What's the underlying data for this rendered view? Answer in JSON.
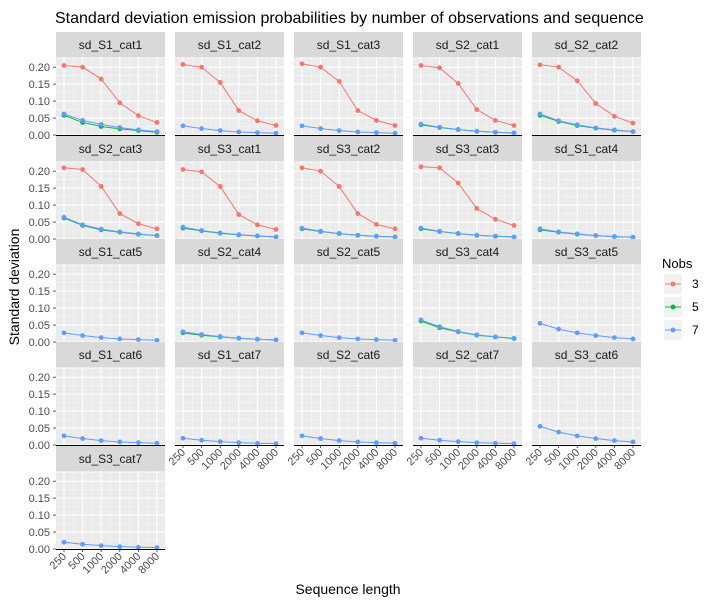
{
  "chart_data": {
    "type": "line",
    "title": "Standard deviation emission probabilities by number of observations and sequence",
    "xlabel": "Sequence length",
    "ylabel": "Standard deviation",
    "x": [
      250,
      500,
      1000,
      2000,
      4000,
      8000
    ],
    "x_tick_labels": [
      "250",
      "500",
      "1000",
      "2000",
      "4000",
      "8000"
    ],
    "x_scale": "log",
    "ylim": [
      0,
      0.23
    ],
    "y_ticks": [
      0.0,
      0.05,
      0.1,
      0.15,
      0.2
    ],
    "y_tick_labels": [
      "0.00",
      "0.05",
      "0.10",
      "0.15",
      "0.20"
    ],
    "grid": true,
    "legend": {
      "title": "Nobs",
      "position": "right",
      "entries": [
        "3",
        "5",
        "7"
      ]
    },
    "series_colors": {
      "3": "#F8766D",
      "5": "#00BA38",
      "7": "#619CFF"
    },
    "facets": [
      {
        "label": "sd_S1_cat1",
        "series": [
          {
            "name": "3",
            "values": [
              0.205,
              0.2,
              0.165,
              0.095,
              0.057,
              0.037
            ]
          },
          {
            "name": "5",
            "values": [
              0.058,
              0.037,
              0.025,
              0.018,
              0.013,
              0.008
            ]
          },
          {
            "name": "7",
            "values": [
              0.062,
              0.043,
              0.031,
              0.022,
              0.015,
              0.01
            ]
          }
        ]
      },
      {
        "label": "sd_S1_cat2",
        "series": [
          {
            "name": "3",
            "values": [
              0.208,
              0.2,
              0.155,
              0.072,
              0.042,
              0.028
            ]
          },
          {
            "name": "7",
            "values": [
              0.027,
              0.019,
              0.013,
              0.009,
              0.007,
              0.005
            ]
          }
        ]
      },
      {
        "label": "sd_S1_cat3",
        "series": [
          {
            "name": "3",
            "values": [
              0.21,
              0.2,
              0.158,
              0.072,
              0.043,
              0.028
            ]
          },
          {
            "name": "7",
            "values": [
              0.027,
              0.019,
              0.013,
              0.009,
              0.007,
              0.005
            ]
          }
        ]
      },
      {
        "label": "sd_S2_cat1",
        "series": [
          {
            "name": "3",
            "values": [
              0.205,
              0.198,
              0.152,
              0.075,
              0.043,
              0.028
            ]
          },
          {
            "name": "5",
            "values": [
              0.03,
              0.022,
              0.016,
              0.011,
              0.008,
              0.006
            ]
          },
          {
            "name": "7",
            "values": [
              0.032,
              0.023,
              0.016,
              0.011,
              0.008,
              0.006
            ]
          }
        ]
      },
      {
        "label": "sd_S2_cat2",
        "series": [
          {
            "name": "3",
            "values": [
              0.207,
              0.2,
              0.16,
              0.093,
              0.055,
              0.035
            ]
          },
          {
            "name": "5",
            "values": [
              0.058,
              0.04,
              0.028,
              0.02,
              0.014,
              0.01
            ]
          },
          {
            "name": "7",
            "values": [
              0.062,
              0.042,
              0.03,
              0.021,
              0.015,
              0.01
            ]
          }
        ]
      },
      {
        "label": "sd_S2_cat3",
        "series": [
          {
            "name": "3",
            "values": [
              0.21,
              0.205,
              0.155,
              0.075,
              0.045,
              0.03
            ]
          },
          {
            "name": "5",
            "values": [
              0.062,
              0.04,
              0.027,
              0.02,
              0.014,
              0.01
            ]
          },
          {
            "name": "7",
            "values": [
              0.064,
              0.042,
              0.029,
              0.021,
              0.015,
              0.01
            ]
          }
        ]
      },
      {
        "label": "sd_S3_cat1",
        "series": [
          {
            "name": "3",
            "values": [
              0.205,
              0.198,
              0.155,
              0.072,
              0.042,
              0.028
            ]
          },
          {
            "name": "5",
            "values": [
              0.032,
              0.024,
              0.017,
              0.012,
              0.009,
              0.006
            ]
          },
          {
            "name": "7",
            "values": [
              0.035,
              0.025,
              0.018,
              0.013,
              0.009,
              0.006
            ]
          }
        ]
      },
      {
        "label": "sd_S3_cat2",
        "series": [
          {
            "name": "3",
            "values": [
              0.21,
              0.2,
              0.155,
              0.075,
              0.043,
              0.03
            ]
          },
          {
            "name": "5",
            "values": [
              0.03,
              0.022,
              0.016,
              0.011,
              0.008,
              0.006
            ]
          },
          {
            "name": "7",
            "values": [
              0.032,
              0.023,
              0.016,
              0.011,
              0.008,
              0.006
            ]
          }
        ]
      },
      {
        "label": "sd_S3_cat3",
        "series": [
          {
            "name": "3",
            "values": [
              0.213,
              0.21,
              0.165,
              0.09,
              0.058,
              0.04
            ]
          },
          {
            "name": "5",
            "values": [
              0.03,
              0.022,
              0.016,
              0.011,
              0.008,
              0.006
            ]
          },
          {
            "name": "7",
            "values": [
              0.032,
              0.023,
              0.016,
              0.011,
              0.008,
              0.006
            ]
          }
        ]
      },
      {
        "label": "sd_S1_cat4",
        "series": [
          {
            "name": "5",
            "values": [
              0.027,
              0.02,
              0.014,
              0.01,
              0.007,
              0.005
            ]
          },
          {
            "name": "7",
            "values": [
              0.03,
              0.021,
              0.015,
              0.01,
              0.007,
              0.005
            ]
          }
        ]
      },
      {
        "label": "sd_S1_cat5",
        "series": [
          {
            "name": "7",
            "values": [
              0.027,
              0.019,
              0.013,
              0.009,
              0.007,
              0.005
            ]
          }
        ]
      },
      {
        "label": "sd_S2_cat4",
        "series": [
          {
            "name": "5",
            "values": [
              0.027,
              0.02,
              0.015,
              0.011,
              0.008,
              0.006
            ]
          },
          {
            "name": "7",
            "values": [
              0.03,
              0.022,
              0.016,
              0.011,
              0.008,
              0.006
            ]
          }
        ]
      },
      {
        "label": "sd_S2_cat5",
        "series": [
          {
            "name": "7",
            "values": [
              0.027,
              0.019,
              0.013,
              0.009,
              0.007,
              0.005
            ]
          }
        ]
      },
      {
        "label": "sd_S3_cat4",
        "series": [
          {
            "name": "5",
            "values": [
              0.062,
              0.042,
              0.03,
              0.02,
              0.015,
              0.01
            ]
          },
          {
            "name": "7",
            "values": [
              0.065,
              0.045,
              0.031,
              0.021,
              0.015,
              0.011
            ]
          }
        ]
      },
      {
        "label": "sd_S3_cat5",
        "series": [
          {
            "name": "7",
            "values": [
              0.055,
              0.038,
              0.027,
              0.019,
              0.013,
              0.009
            ]
          }
        ]
      },
      {
        "label": "sd_S1_cat6",
        "series": [
          {
            "name": "7",
            "values": [
              0.027,
              0.019,
              0.013,
              0.009,
              0.007,
              0.005
            ]
          }
        ]
      },
      {
        "label": "sd_S1_cat7",
        "series": [
          {
            "name": "7",
            "values": [
              0.02,
              0.014,
              0.01,
              0.007,
              0.005,
              0.004
            ]
          }
        ]
      },
      {
        "label": "sd_S2_cat6",
        "series": [
          {
            "name": "7",
            "values": [
              0.027,
              0.019,
              0.013,
              0.009,
              0.007,
              0.005
            ]
          }
        ]
      },
      {
        "label": "sd_S2_cat7",
        "series": [
          {
            "name": "7",
            "values": [
              0.02,
              0.014,
              0.01,
              0.007,
              0.005,
              0.004
            ]
          }
        ]
      },
      {
        "label": "sd_S3_cat6",
        "series": [
          {
            "name": "7",
            "values": [
              0.055,
              0.038,
              0.027,
              0.019,
              0.013,
              0.009
            ]
          }
        ]
      },
      {
        "label": "sd_S3_cat7",
        "series": [
          {
            "name": "7",
            "values": [
              0.02,
              0.014,
              0.01,
              0.007,
              0.005,
              0.004
            ]
          }
        ]
      }
    ]
  }
}
